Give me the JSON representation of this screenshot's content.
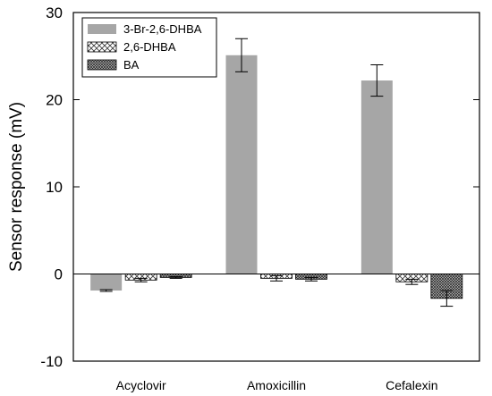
{
  "chart_data": {
    "type": "bar",
    "ylabel": "Sensor response (mV)",
    "xlabel": "",
    "ylim": [
      -10,
      30
    ],
    "yticks": [
      -10,
      0,
      10,
      20,
      30
    ],
    "categories": [
      "Acyclovir",
      "Amoxicillin",
      "Cefalexin"
    ],
    "series": [
      {
        "name": "3-Br-2,6-DHBA",
        "pattern": "solid",
        "color": "#a6a6a6",
        "values": [
          -1.9,
          25.1,
          22.2
        ],
        "errors": [
          0.1,
          1.9,
          1.8
        ]
      },
      {
        "name": "2,6-DHBA",
        "pattern": "crosshatch-light",
        "color": "#ffffff",
        "values": [
          -0.7,
          -0.5,
          -0.9
        ],
        "errors": [
          0.2,
          0.3,
          0.3
        ]
      },
      {
        "name": "BA",
        "pattern": "crosshatch-dense",
        "color": "#9a9a9a",
        "values": [
          -0.4,
          -0.6,
          -2.8
        ],
        "errors": [
          0.1,
          0.2,
          0.9
        ]
      }
    ],
    "legend": "top-left",
    "grid": false
  }
}
